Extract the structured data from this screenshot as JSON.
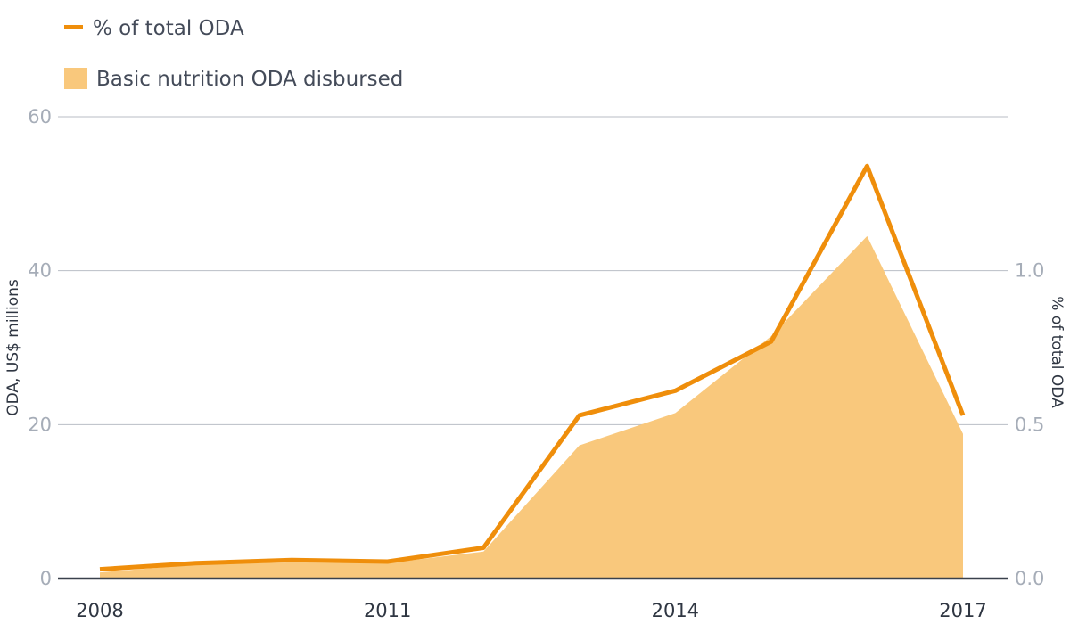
{
  "chart_data": {
    "type": "area",
    "x": [
      2008,
      2009,
      2010,
      2011,
      2012,
      2013,
      2014,
      2015,
      2016,
      2017
    ],
    "series": [
      {
        "name": "Basic nutrition ODA disbursed",
        "kind": "area",
        "axis": "left",
        "color": "#f9c87c",
        "values": [
          0.8,
          1.8,
          2.1,
          2.0,
          3.5,
          17.3,
          21.5,
          31.5,
          44.5,
          18.8
        ]
      },
      {
        "name": "% of total ODA",
        "kind": "line",
        "axis": "right",
        "color": "#ef8e0b",
        "values": [
          0.03,
          0.05,
          0.06,
          0.055,
          0.1,
          0.53,
          0.61,
          0.77,
          1.34,
          0.53
        ]
      }
    ],
    "x_ticks": [
      "2008",
      "2011",
      "2014",
      "2017"
    ],
    "y_left": {
      "label": "ODA, US$ millions",
      "ticks": [
        "0",
        "20",
        "40",
        "60"
      ],
      "range": [
        0,
        60
      ]
    },
    "y_right": {
      "label": "% of total ODA",
      "ticks": [
        "0.0",
        "0.5",
        "1.0"
      ],
      "range": [
        0,
        1.5
      ]
    },
    "grid": true,
    "legend_position": "top-left"
  },
  "legend": {
    "line_label": "% of total ODA",
    "area_label": "Basic nutrition ODA disbursed"
  }
}
